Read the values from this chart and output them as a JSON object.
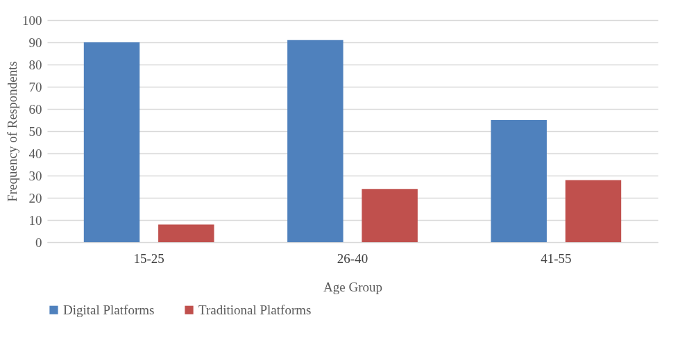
{
  "chart_data": {
    "type": "bar",
    "xlabel": "Age Group",
    "ylabel": "Frequency of Respondents",
    "categories": [
      "15-25",
      "26-40",
      "41-55"
    ],
    "series": [
      {
        "name": "Digital Platforms",
        "color": "#4f81bd",
        "values": [
          90,
          91,
          55
        ]
      },
      {
        "name": "Traditional Platforms",
        "color": "#c0504d",
        "values": [
          8,
          24,
          28
        ]
      }
    ],
    "ylim": [
      0,
      100
    ],
    "yticks": [
      0,
      10,
      20,
      30,
      40,
      50,
      60,
      70,
      80,
      90,
      100
    ],
    "grid": "y",
    "legend": "bottom"
  }
}
